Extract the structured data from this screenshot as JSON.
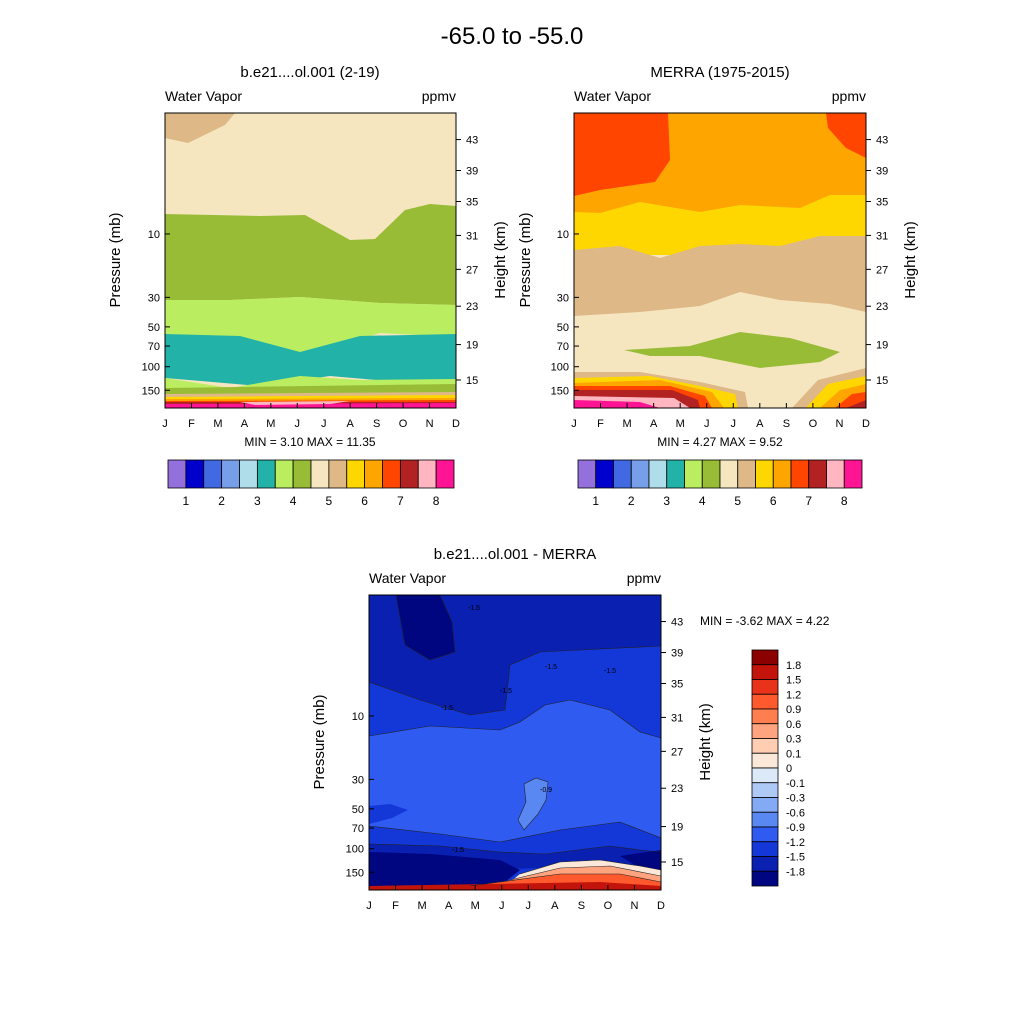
{
  "figure_title": "-65.0 to -55.0",
  "chart_data": [
    {
      "type": "contour",
      "title": "b.e21....ol.001 (2-19)",
      "variable": "Water Vapor",
      "units": "ppmv",
      "ylabel_left": "Pressure (mb)",
      "ylabel_right": "Height (km)",
      "x_ticks": [
        "J",
        "F",
        "M",
        "A",
        "M",
        "J",
        "J",
        "A",
        "S",
        "O",
        "N",
        "D"
      ],
      "pressure_ticks": [
        "10",
        "30",
        "50",
        "70",
        "100",
        "150"
      ],
      "height_ticks": [
        "43",
        "39",
        "35",
        "31",
        "27",
        "23",
        "19",
        "15"
      ],
      "min_label": "MIN =   3.10  MAX =  11.35",
      "min": 3.1,
      "max": 11.35,
      "colorbar_labels": [
        "1",
        "2",
        "3",
        "4",
        "5",
        "6",
        "7",
        "8"
      ],
      "bands": [
        {
          "level": 5.0,
          "color": "#f5e6c0"
        },
        {
          "level": 4.5,
          "color": "#98bc36"
        },
        {
          "level": 4.0,
          "color": "#bbed60"
        },
        {
          "level": 3.5,
          "color": "#23b2a8"
        },
        {
          "level": 5.5,
          "color": "#deb887"
        }
      ]
    },
    {
      "type": "contour",
      "title": "MERRA (1975-2015)",
      "variable": "Water Vapor",
      "units": "ppmv",
      "ylabel_left": "Pressure (mb)",
      "ylabel_right": "Height (km)",
      "x_ticks": [
        "J",
        "F",
        "M",
        "A",
        "M",
        "J",
        "J",
        "A",
        "S",
        "O",
        "N",
        "D"
      ],
      "pressure_ticks": [
        "10",
        "30",
        "50",
        "70",
        "100",
        "150"
      ],
      "height_ticks": [
        "43",
        "39",
        "35",
        "31",
        "27",
        "23",
        "19",
        "15"
      ],
      "min_label": "MIN =   4.27  MAX =   9.52",
      "min": 4.27,
      "max": 9.52,
      "colorbar_labels": [
        "1",
        "2",
        "3",
        "4",
        "5",
        "6",
        "7",
        "8"
      ],
      "bands": [
        {
          "level": 6.5,
          "color": "#ff4500"
        },
        {
          "level": 6.0,
          "color": "#ffa500"
        },
        {
          "level": 5.5,
          "color": "#ffd700"
        },
        {
          "level": 5.0,
          "color": "#deb887"
        },
        {
          "level": 4.5,
          "color": "#f5e6c0"
        },
        {
          "level": 4.0,
          "color": "#98bc36"
        }
      ]
    },
    {
      "type": "contour",
      "title": "b.e21....ol.001 - MERRA",
      "variable": "Water Vapor",
      "units": "ppmv",
      "ylabel_left": "Pressure (mb)",
      "ylabel_right": "Height (km)",
      "x_ticks": [
        "J",
        "F",
        "M",
        "A",
        "M",
        "J",
        "J",
        "A",
        "S",
        "O",
        "N",
        "D"
      ],
      "pressure_ticks": [
        "10",
        "30",
        "50",
        "70",
        "100",
        "150"
      ],
      "height_ticks": [
        "43",
        "39",
        "35",
        "31",
        "27",
        "23",
        "19",
        "15"
      ],
      "min_label": "MIN =  -3.62  MAX =   4.22",
      "min": -3.62,
      "max": 4.22,
      "contour_labels": [
        "-1.5",
        "-1.5",
        "-1.5",
        "-1.5",
        "-1.5",
        "-0.9",
        "-1.5"
      ],
      "colorbar_labels": [
        "1.8",
        "1.5",
        "1.2",
        "0.9",
        "0.6",
        "0.3",
        "0.1",
        "0",
        "-0.1",
        "-0.3",
        "-0.6",
        "-0.9",
        "-1.2",
        "-1.5",
        "-1.8"
      ]
    }
  ],
  "colorbars": {
    "wv_colors": [
      "#9370db",
      "#0000cd",
      "#4169e1",
      "#779ee9",
      "#afdde9",
      "#23b2a8",
      "#bbed60",
      "#98bc36",
      "#f5e6c0",
      "#deb887",
      "#ffd700",
      "#ffa500",
      "#ff4500",
      "#b22222",
      "#ffb6c1",
      "#ff1493"
    ],
    "diff_colors": [
      "#8b0000",
      "#c3140c",
      "#e8321a",
      "#ff5a2d",
      "#ff7e4f",
      "#ffa47f",
      "#ffcdb2",
      "#fbe8d8",
      "#dbe9f9",
      "#afc9f7",
      "#84a9f5",
      "#5a88f3",
      "#2f5bf0",
      "#1437d8",
      "#0a20b0",
      "#000580"
    ]
  }
}
